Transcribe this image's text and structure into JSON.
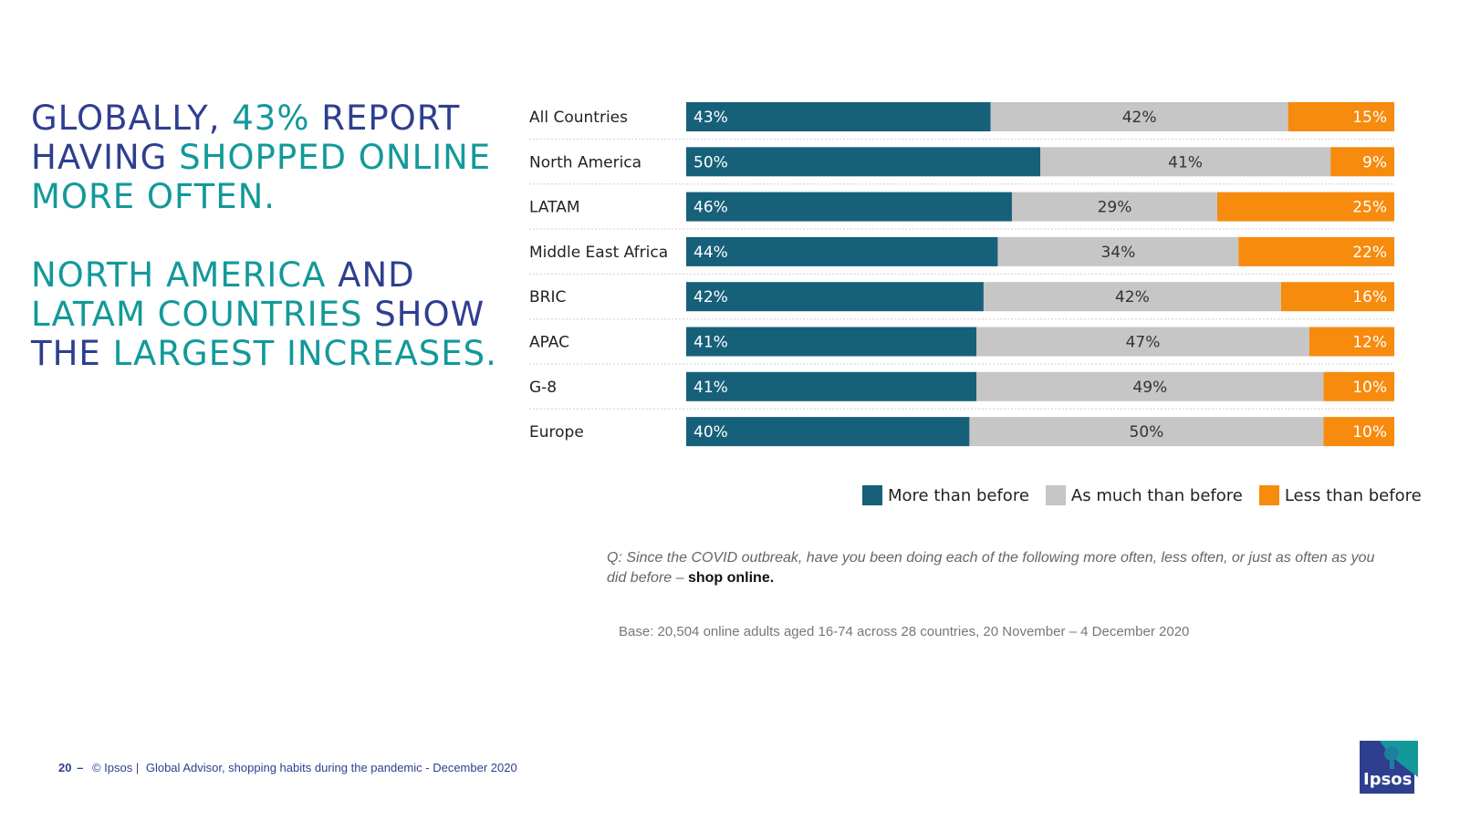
{
  "headline": {
    "p1": [
      {
        "text": "GLOBALLY, ",
        "tone": "navy"
      },
      {
        "text": "43%",
        "tone": "teal"
      },
      {
        "text": " REPORT HAVING ",
        "tone": "navy"
      },
      {
        "text": "SHOPPED ONLINE MORE OFTEN.",
        "tone": "teal"
      }
    ],
    "p2": [
      {
        "text": "NORTH AMERICA",
        "tone": "teal"
      },
      {
        "text": " AND ",
        "tone": "navy"
      },
      {
        "text": "LATAM COUNTRIES",
        "tone": "teal"
      },
      {
        "text": " SHOW THE ",
        "tone": "navy"
      },
      {
        "text": "LARGEST INCREASES.",
        "tone": "teal"
      }
    ]
  },
  "chart_data": {
    "type": "bar",
    "orientation": "horizontal",
    "stacked": true,
    "normalized": true,
    "categories": [
      "All Countries",
      "North America",
      "LATAM",
      "Middle East Africa",
      "BRIC",
      "APAC",
      "G-8",
      "Europe"
    ],
    "series": [
      {
        "name": "More than before",
        "color": "#17607a",
        "values": [
          43,
          50,
          46,
          44,
          42,
          41,
          41,
          40
        ]
      },
      {
        "name": "As much than before",
        "color": "#c6c6c6",
        "values": [
          42,
          41,
          29,
          34,
          42,
          47,
          49,
          50
        ]
      },
      {
        "name": "Less than before",
        "color": "#f68b0e",
        "values": [
          15,
          9,
          25,
          22,
          16,
          12,
          10,
          10
        ]
      }
    ],
    "value_suffix": "%",
    "legend_position": "bottom-right",
    "grid": false
  },
  "question": {
    "prefix": "Q: Since the COVID outbreak, have you been doing each of the following more often, less often, or just as often as you did before – ",
    "emphasis": "shop online."
  },
  "base": "Base: 20,504 online adults aged 16-74 across 28 countries,  20 November – 4 December 2020",
  "footer": {
    "page": "20",
    "dash": "–",
    "copyright": "© Ipsos |",
    "source": "Global Advisor, shopping habits during the pandemic - December 2020"
  },
  "logo": {
    "text": "Ipsos",
    "icon": "ipsos-logo-icon"
  }
}
